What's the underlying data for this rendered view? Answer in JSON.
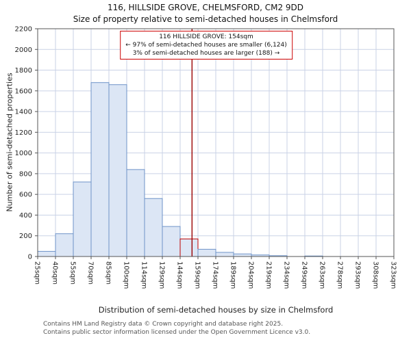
{
  "annotation": {
    "line1": "116 HILLSIDE GROVE: 154sqm",
    "line2": "← 97% of semi-detached houses are smaller (6,124)",
    "line3": "3% of semi-detached houses are larger (188) →"
  },
  "footer": {
    "line1": "Contains HM Land Registry data © Crown copyright and database right 2025.",
    "line2": "Contains public sector information licensed under the Open Government Licence v3.0."
  },
  "chart_data": {
    "type": "bar",
    "title": "116, HILLSIDE GROVE, CHELMSFORD, CM2 9DD",
    "subtitle": "Size of property relative to semi-detached houses in Chelmsford",
    "xlabel": "Distribution of semi-detached houses by size in Chelmsford",
    "ylabel": "Number of semi-detached properties",
    "categories": [
      "25sqm",
      "40sqm",
      "55sqm",
      "70sqm",
      "85sqm",
      "100sqm",
      "114sqm",
      "129sqm",
      "144sqm",
      "159sqm",
      "174sqm",
      "189sqm",
      "204sqm",
      "219sqm",
      "234sqm",
      "249sqm",
      "263sqm",
      "278sqm",
      "293sqm",
      "308sqm",
      "323sqm"
    ],
    "values": [
      50,
      220,
      720,
      1680,
      1660,
      840,
      560,
      290,
      170,
      70,
      40,
      25,
      15,
      8,
      0,
      5,
      0,
      0,
      0,
      0
    ],
    "ylim": [
      0,
      2200
    ],
    "ytick_step": 200,
    "grid": true,
    "legend": "none",
    "marker_value": 154,
    "marker_label": "154sqm",
    "highlight_bin_index": 8,
    "colors": {
      "bar_fill": "#dce6f5",
      "bar_edge": "#6e93c8",
      "highlight_edge": "#bb0000",
      "marker_line": "#990000",
      "grid": "#c9d2e6",
      "annotation_border": "#cc0000",
      "spine": "#555555"
    }
  }
}
